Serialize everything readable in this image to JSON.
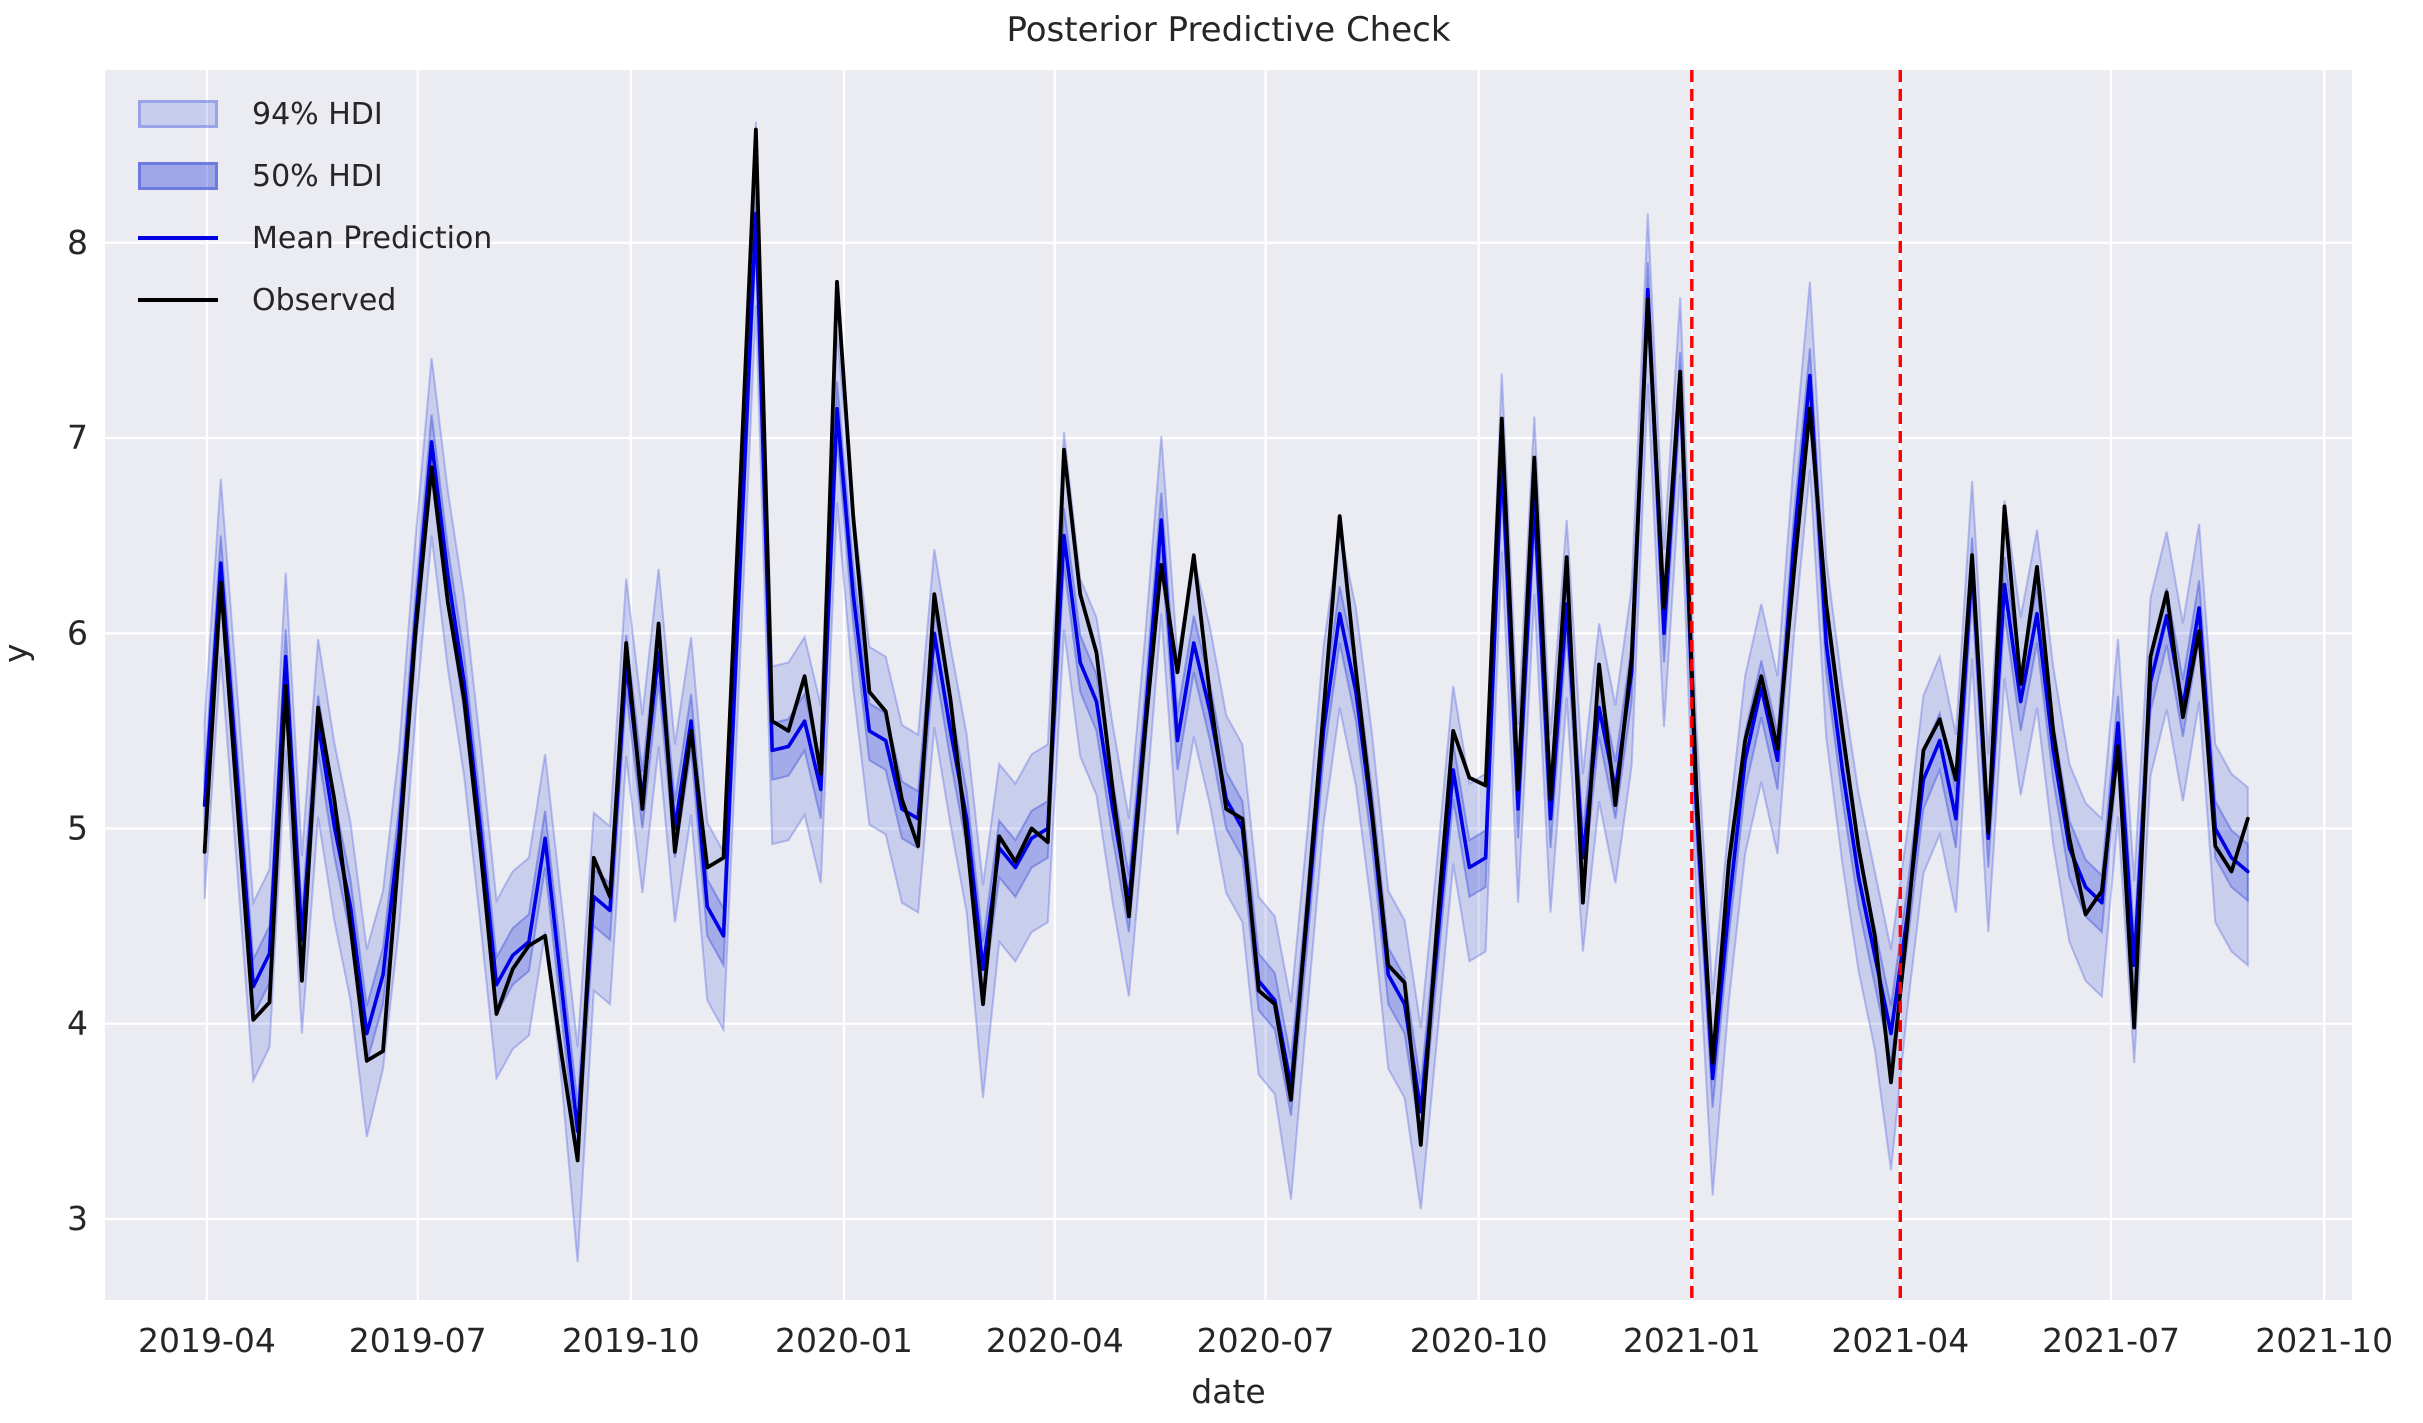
{
  "title": "Posterior Predictive Check",
  "x_axis": {
    "label": "date",
    "ticks": [
      "2019-04",
      "2019-07",
      "2019-10",
      "2020-01",
      "2020-04",
      "2020-07",
      "2020-10",
      "2021-01",
      "2021-04",
      "2021-07",
      "2021-10"
    ],
    "tick_dates": [
      "2019-04-01",
      "2019-07-01",
      "2019-10-01",
      "2020-01-01",
      "2020-04-01",
      "2020-07-01",
      "2020-10-01",
      "2021-01-01",
      "2021-04-01",
      "2021-07-01",
      "2021-10-01"
    ]
  },
  "y_axis": {
    "label": "y",
    "ticks": [
      3,
      4,
      5,
      6,
      7,
      8
    ]
  },
  "legend": {
    "hdi94_label": "94% HDI",
    "hdi50_label": "50% HDI",
    "mean_label": "Mean Prediction",
    "observed_label": "Observed"
  },
  "colors": {
    "background_plot": "#ebebf2",
    "grid": "#ffffff",
    "band_base": "#4255dc",
    "mean_line": "#0000e6",
    "observed_line": "#000000",
    "vline": "#ff0000",
    "text": "#262626"
  },
  "chart_data": {
    "type": "line",
    "title": "Posterior Predictive Check",
    "xlabel": "date",
    "ylabel": "y",
    "legend_position": "upper left",
    "grid": true,
    "xlim": [
      "2019-02-16",
      "2021-10-13"
    ],
    "ylim": [
      2.585,
      8.885
    ],
    "vlines": [
      "2021-01-01",
      "2021-04-01"
    ],
    "x": [
      "2019-03-31",
      "2019-04-07",
      "2019-04-14",
      "2019-04-21",
      "2019-04-28",
      "2019-05-05",
      "2019-05-12",
      "2019-05-19",
      "2019-05-26",
      "2019-06-02",
      "2019-06-09",
      "2019-06-16",
      "2019-06-23",
      "2019-06-30",
      "2019-07-07",
      "2019-07-14",
      "2019-07-21",
      "2019-07-28",
      "2019-08-04",
      "2019-08-11",
      "2019-08-18",
      "2019-08-25",
      "2019-09-01",
      "2019-09-08",
      "2019-09-15",
      "2019-09-22",
      "2019-09-29",
      "2019-10-06",
      "2019-10-13",
      "2019-10-20",
      "2019-10-27",
      "2019-11-03",
      "2019-11-10",
      "2019-11-17",
      "2019-11-24",
      "2019-12-01",
      "2019-12-08",
      "2019-12-15",
      "2019-12-22",
      "2019-12-29",
      "2020-01-05",
      "2020-01-12",
      "2020-01-19",
      "2020-01-26",
      "2020-02-02",
      "2020-02-09",
      "2020-02-16",
      "2020-02-23",
      "2020-03-01",
      "2020-03-08",
      "2020-03-15",
      "2020-03-22",
      "2020-03-29",
      "2020-04-05",
      "2020-04-12",
      "2020-04-19",
      "2020-04-26",
      "2020-05-03",
      "2020-05-10",
      "2020-05-17",
      "2020-05-24",
      "2020-05-31",
      "2020-06-07",
      "2020-06-14",
      "2020-06-21",
      "2020-06-28",
      "2020-07-05",
      "2020-07-12",
      "2020-07-19",
      "2020-07-26",
      "2020-08-02",
      "2020-08-09",
      "2020-08-16",
      "2020-08-23",
      "2020-08-30",
      "2020-09-06",
      "2020-09-13",
      "2020-09-20",
      "2020-09-27",
      "2020-10-04",
      "2020-10-11",
      "2020-10-18",
      "2020-10-25",
      "2020-11-01",
      "2020-11-08",
      "2020-11-15",
      "2020-11-22",
      "2020-11-29",
      "2020-12-06",
      "2020-12-13",
      "2020-12-20",
      "2020-12-27",
      "2021-01-03",
      "2021-01-10",
      "2021-01-17",
      "2021-01-24",
      "2021-01-31",
      "2021-02-07",
      "2021-02-14",
      "2021-02-21",
      "2021-02-28",
      "2021-03-07",
      "2021-03-14",
      "2021-03-21",
      "2021-03-28",
      "2021-04-04",
      "2021-04-11",
      "2021-04-18",
      "2021-04-25",
      "2021-05-02",
      "2021-05-09",
      "2021-05-16",
      "2021-05-23",
      "2021-05-30",
      "2021-06-06",
      "2021-06-13",
      "2021-06-20",
      "2021-06-27",
      "2021-07-04",
      "2021-07-11",
      "2021-07-18",
      "2021-07-25",
      "2021-08-01",
      "2021-08-08",
      "2021-08-15",
      "2021-08-22",
      "2021-08-29"
    ],
    "series": [
      {
        "name": "Observed",
        "values": [
          4.88,
          6.26,
          5.15,
          4.02,
          4.11,
          5.73,
          4.22,
          5.62,
          5.15,
          4.5,
          3.81,
          3.86,
          4.9,
          6.0,
          6.85,
          6.16,
          5.66,
          4.9,
          4.05,
          4.28,
          4.4,
          4.45,
          3.85,
          3.3,
          4.85,
          4.65,
          5.95,
          5.1,
          6.05,
          4.88,
          5.5,
          4.8,
          4.85,
          6.7,
          8.58,
          5.55,
          5.5,
          5.78,
          5.28,
          7.8,
          6.6,
          5.7,
          5.6,
          5.15,
          4.91,
          6.2,
          5.66,
          4.95,
          4.1,
          4.96,
          4.83,
          5.0,
          4.93,
          6.94,
          6.2,
          5.9,
          5.2,
          4.55,
          5.5,
          6.35,
          5.8,
          6.4,
          5.68,
          5.1,
          5.05,
          4.17,
          4.1,
          3.61,
          4.6,
          5.6,
          6.6,
          5.81,
          5.08,
          4.3,
          4.21,
          3.38,
          4.5,
          5.5,
          5.26,
          5.22,
          7.1,
          5.2,
          6.9,
          5.15,
          6.39,
          4.62,
          5.84,
          5.12,
          5.87,
          7.71,
          6.13,
          7.34,
          5.2,
          3.8,
          4.83,
          5.45,
          5.78,
          5.41,
          6.3,
          7.15,
          6.15,
          5.5,
          4.9,
          4.45,
          3.7,
          4.5,
          5.4,
          5.56,
          5.25,
          6.4,
          4.98,
          6.65,
          5.74,
          6.34,
          5.5,
          4.95,
          4.56,
          4.68,
          5.42,
          3.98,
          5.88,
          6.21,
          5.57,
          6.01,
          4.91,
          4.78,
          5.05
        ]
      },
      {
        "name": "Mean Prediction",
        "values": [
          5.12,
          6.36,
          5.28,
          4.19,
          4.36,
          5.88,
          4.43,
          5.54,
          5.01,
          4.6,
          3.95,
          4.25,
          4.98,
          6.05,
          6.98,
          6.3,
          5.75,
          5.0,
          4.2,
          4.35,
          4.42,
          4.95,
          4.2,
          3.45,
          4.65,
          4.58,
          5.85,
          5.15,
          5.9,
          5.0,
          5.55,
          4.6,
          4.45,
          6.3,
          8.15,
          5.4,
          5.42,
          5.55,
          5.2,
          7.15,
          6.2,
          5.5,
          5.45,
          5.1,
          5.05,
          6.0,
          5.5,
          5.05,
          4.28,
          4.9,
          4.8,
          4.95,
          5.0,
          6.5,
          5.85,
          5.65,
          5.1,
          4.62,
          5.55,
          6.58,
          5.45,
          5.95,
          5.6,
          5.15,
          5.0,
          4.22,
          4.12,
          3.68,
          4.55,
          5.5,
          6.1,
          5.7,
          5.05,
          4.25,
          4.1,
          3.55,
          4.4,
          5.3,
          4.8,
          4.85,
          6.9,
          5.1,
          6.68,
          5.05,
          6.15,
          4.85,
          5.62,
          5.2,
          5.8,
          7.76,
          6.0,
          7.3,
          5.1,
          3.72,
          4.6,
          5.35,
          5.72,
          5.35,
          6.45,
          7.32,
          5.95,
          5.3,
          4.75,
          4.35,
          3.95,
          4.55,
          5.25,
          5.45,
          5.05,
          6.35,
          4.95,
          6.25,
          5.65,
          6.1,
          5.4,
          4.9,
          4.7,
          4.62,
          5.54,
          4.3,
          5.75,
          6.09,
          5.62,
          6.13,
          5.0,
          4.85,
          4.78
        ]
      },
      {
        "name": "94% HDI lower",
        "values": [
          4.64,
          5.88,
          4.8,
          3.71,
          3.88,
          5.4,
          3.95,
          5.06,
          4.53,
          4.12,
          3.42,
          3.77,
          4.5,
          5.57,
          6.5,
          5.82,
          5.27,
          4.52,
          3.72,
          3.87,
          3.94,
          4.47,
          3.72,
          2.78,
          4.17,
          4.1,
          5.37,
          4.67,
          5.42,
          4.52,
          5.07,
          4.12,
          3.97,
          5.82,
          7.68,
          4.92,
          4.94,
          5.07,
          4.72,
          6.67,
          5.72,
          5.02,
          4.97,
          4.62,
          4.57,
          5.52,
          5.02,
          4.57,
          3.62,
          4.42,
          4.32,
          4.47,
          4.52,
          6.02,
          5.37,
          5.17,
          4.62,
          4.14,
          5.07,
          6.1,
          4.97,
          5.47,
          5.12,
          4.67,
          4.52,
          3.74,
          3.64,
          3.1,
          4.07,
          5.02,
          5.62,
          5.22,
          4.57,
          3.77,
          3.62,
          3.05,
          3.92,
          4.82,
          4.32,
          4.37,
          6.42,
          4.62,
          6.2,
          4.57,
          5.67,
          4.37,
          5.14,
          4.72,
          5.32,
          7.28,
          5.52,
          6.82,
          4.62,
          3.12,
          4.12,
          4.87,
          5.24,
          4.87,
          5.97,
          6.84,
          5.47,
          4.82,
          4.27,
          3.87,
          3.25,
          4.07,
          4.77,
          4.97,
          4.57,
          5.87,
          4.47,
          5.77,
          5.17,
          5.62,
          4.92,
          4.42,
          4.22,
          4.14,
          5.06,
          3.8,
          5.27,
          5.61,
          5.14,
          5.65,
          4.52,
          4.37,
          4.3
        ]
      },
      {
        "name": "94% HDI upper",
        "values": [
          5.55,
          6.79,
          5.71,
          4.62,
          4.79,
          6.31,
          4.86,
          5.97,
          5.44,
          5.03,
          4.38,
          4.68,
          5.41,
          6.48,
          7.41,
          6.73,
          6.18,
          5.43,
          4.63,
          4.78,
          4.85,
          5.38,
          4.63,
          3.88,
          5.08,
          5.01,
          6.28,
          5.58,
          6.33,
          5.43,
          5.98,
          5.03,
          4.88,
          6.73,
          8.62,
          5.83,
          5.85,
          5.98,
          5.63,
          7.55,
          6.63,
          5.93,
          5.88,
          5.53,
          5.48,
          6.43,
          5.93,
          5.48,
          4.71,
          5.33,
          5.23,
          5.38,
          5.43,
          7.03,
          6.28,
          6.08,
          5.53,
          5.05,
          5.98,
          7.01,
          5.88,
          6.38,
          6.03,
          5.58,
          5.43,
          4.65,
          4.55,
          4.11,
          4.98,
          5.93,
          6.53,
          6.13,
          5.48,
          4.68,
          4.53,
          3.98,
          4.83,
          5.73,
          5.23,
          5.28,
          7.33,
          5.53,
          7.11,
          5.48,
          6.58,
          5.28,
          6.05,
          5.63,
          6.23,
          8.15,
          6.43,
          7.72,
          5.53,
          4.15,
          5.03,
          5.78,
          6.15,
          5.78,
          6.88,
          7.8,
          6.38,
          5.73,
          5.18,
          4.78,
          4.38,
          4.98,
          5.68,
          5.88,
          5.48,
          6.78,
          5.38,
          6.68,
          6.08,
          6.53,
          5.83,
          5.33,
          5.13,
          5.05,
          5.97,
          4.73,
          6.18,
          6.52,
          6.05,
          6.56,
          5.43,
          5.28,
          5.21
        ]
      },
      {
        "name": "50% HDI lower",
        "values": [
          4.97,
          6.21,
          5.13,
          4.04,
          4.21,
          5.73,
          4.28,
          5.39,
          4.86,
          4.45,
          3.8,
          4.1,
          4.83,
          5.9,
          6.83,
          6.15,
          5.6,
          4.85,
          4.05,
          4.2,
          4.27,
          4.8,
          4.05,
          3.3,
          4.5,
          4.43,
          5.7,
          5.0,
          5.75,
          4.85,
          5.4,
          4.45,
          4.3,
          6.15,
          8.0,
          5.25,
          5.27,
          5.4,
          5.05,
          7.0,
          6.05,
          5.35,
          5.3,
          4.95,
          4.9,
          5.85,
          5.35,
          4.9,
          4.13,
          4.75,
          4.65,
          4.8,
          4.85,
          6.35,
          5.7,
          5.5,
          4.95,
          4.47,
          5.4,
          6.43,
          5.3,
          5.8,
          5.45,
          5.0,
          4.85,
          4.07,
          3.97,
          3.53,
          4.4,
          5.35,
          5.95,
          5.55,
          4.9,
          4.1,
          3.95,
          3.4,
          4.25,
          5.15,
          4.65,
          4.7,
          6.75,
          4.95,
          6.53,
          4.9,
          6.0,
          4.7,
          5.47,
          5.05,
          5.65,
          7.61,
          5.85,
          7.15,
          4.95,
          3.57,
          4.45,
          5.2,
          5.57,
          5.2,
          6.3,
          7.17,
          5.8,
          5.15,
          4.6,
          4.2,
          3.8,
          4.4,
          5.1,
          5.3,
          4.9,
          6.2,
          4.8,
          6.1,
          5.5,
          5.95,
          5.25,
          4.75,
          4.55,
          4.47,
          5.39,
          4.15,
          5.6,
          5.94,
          5.47,
          5.98,
          4.85,
          4.7,
          4.63
        ]
      },
      {
        "name": "50% HDI upper",
        "values": [
          5.26,
          6.5,
          5.42,
          4.33,
          4.5,
          6.02,
          4.57,
          5.68,
          5.15,
          4.74,
          4.09,
          4.39,
          5.12,
          6.19,
          7.12,
          6.44,
          5.89,
          5.14,
          4.34,
          4.49,
          4.56,
          5.09,
          4.34,
          3.59,
          4.79,
          4.72,
          5.99,
          5.29,
          6.04,
          5.14,
          5.69,
          4.74,
          4.59,
          6.44,
          8.29,
          5.54,
          5.56,
          5.69,
          5.34,
          7.29,
          6.34,
          5.64,
          5.59,
          5.24,
          5.19,
          6.14,
          5.64,
          5.19,
          4.42,
          5.04,
          4.94,
          5.09,
          5.14,
          6.64,
          5.99,
          5.79,
          5.24,
          4.76,
          5.69,
          6.72,
          5.59,
          6.09,
          5.74,
          5.29,
          5.14,
          4.36,
          4.26,
          3.82,
          4.69,
          5.64,
          6.24,
          5.84,
          5.19,
          4.39,
          4.24,
          3.69,
          4.54,
          5.44,
          4.94,
          4.99,
          7.04,
          5.24,
          6.82,
          5.19,
          6.29,
          4.99,
          5.76,
          5.34,
          5.94,
          7.9,
          6.14,
          7.44,
          5.24,
          3.86,
          4.74,
          5.49,
          5.86,
          5.49,
          6.59,
          7.46,
          6.09,
          5.44,
          4.89,
          4.49,
          4.09,
          4.69,
          5.39,
          5.59,
          5.19,
          6.49,
          5.09,
          6.39,
          5.79,
          6.24,
          5.54,
          5.04,
          4.84,
          4.76,
          5.68,
          4.44,
          5.89,
          6.23,
          5.76,
          6.27,
          5.14,
          4.99,
          4.92
        ]
      }
    ]
  },
  "layout_text": {
    "note": ""
  }
}
